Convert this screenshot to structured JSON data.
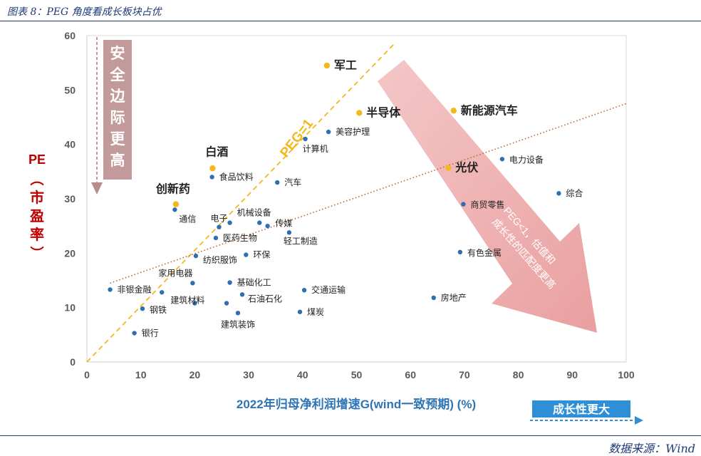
{
  "caption": "图表 8：PEG 角度看成长板块占优",
  "source": "数据来源：Wind",
  "chart_data": {
    "type": "scatter",
    "title": "",
    "xlabel": "2022年归母净利润增速G(wind一致预期) (%)",
    "ylabel_top": "PE",
    "ylabel_paren": "（市盈率）",
    "xlim": [
      0,
      100
    ],
    "ylim": [
      0,
      60
    ],
    "xticks": [
      "0",
      "10",
      "20",
      "30",
      "40",
      "50",
      "60",
      "70",
      "80",
      "90",
      "100"
    ],
    "yticks": [
      "0",
      "10",
      "20",
      "30",
      "40",
      "50",
      "60"
    ],
    "grid": false,
    "points": [
      {
        "name": "军工",
        "x": 44.5,
        "y": 54.5,
        "highlight": true
      },
      {
        "name": "半导体",
        "x": 50.5,
        "y": 45.8,
        "highlight": true
      },
      {
        "name": "新能源汽车",
        "x": 68.0,
        "y": 46.2,
        "highlight": true
      },
      {
        "name": "光伏",
        "x": 67.0,
        "y": 35.7,
        "highlight": true
      },
      {
        "name": "白酒",
        "x": 23.3,
        "y": 35.6,
        "highlight": true
      },
      {
        "name": "创新药",
        "x": 16.5,
        "y": 29.0,
        "highlight": true
      },
      {
        "name": "美容护理",
        "x": 44.8,
        "y": 42.3,
        "highlight": false
      },
      {
        "name": "计算机",
        "x": 40.5,
        "y": 41.0,
        "highlight": false
      },
      {
        "name": "食品饮料",
        "x": 23.2,
        "y": 34.0,
        "highlight": false
      },
      {
        "name": "汽车",
        "x": 35.3,
        "y": 33.0,
        "highlight": false
      },
      {
        "name": "通信",
        "x": 16.3,
        "y": 28.0,
        "highlight": false
      },
      {
        "name": "电子",
        "x": 24.5,
        "y": 24.8,
        "highlight": false
      },
      {
        "name": "机械设备",
        "x": 26.5,
        "y": 25.6,
        "highlight": false
      },
      {
        "name": "传媒",
        "x": 32.0,
        "y": 25.6,
        "highlight": false
      },
      {
        "name": "",
        "x": 33.5,
        "y": 25.0,
        "highlight": false
      },
      {
        "name": "医药生物",
        "x": 23.9,
        "y": 22.8,
        "highlight": false
      },
      {
        "name": "轻工制造",
        "x": 37.5,
        "y": 23.8,
        "highlight": false
      },
      {
        "name": "纺织服饰",
        "x": 20.2,
        "y": 19.5,
        "highlight": false
      },
      {
        "name": "环保",
        "x": 29.5,
        "y": 19.7,
        "highlight": false
      },
      {
        "name": "家用电器",
        "x": 19.6,
        "y": 14.5,
        "highlight": false
      },
      {
        "name": "基础化工",
        "x": 26.5,
        "y": 14.6,
        "highlight": false
      },
      {
        "name": "非银金融",
        "x": 4.3,
        "y": 13.3,
        "highlight": false
      },
      {
        "name": "",
        "x": 13.9,
        "y": 12.8,
        "highlight": false
      },
      {
        "name": "交通运输",
        "x": 40.3,
        "y": 13.2,
        "highlight": false
      },
      {
        "name": "石油石化",
        "x": 28.8,
        "y": 12.4,
        "highlight": false
      },
      {
        "name": "建筑材料",
        "x": 20.0,
        "y": 10.8,
        "highlight": false
      },
      {
        "name": "钢铁",
        "x": 10.3,
        "y": 9.8,
        "highlight": false
      },
      {
        "name": "",
        "x": 25.9,
        "y": 10.8,
        "highlight": false
      },
      {
        "name": "建筑装饰",
        "x": 28.0,
        "y": 9.0,
        "highlight": false
      },
      {
        "name": "煤炭",
        "x": 39.5,
        "y": 9.2,
        "highlight": false
      },
      {
        "name": "银行",
        "x": 8.8,
        "y": 5.3,
        "highlight": false
      },
      {
        "name": "电力设备",
        "x": 77.0,
        "y": 37.3,
        "highlight": false
      },
      {
        "name": "综合",
        "x": 87.5,
        "y": 31.0,
        "highlight": false
      },
      {
        "name": "商贸零售",
        "x": 69.8,
        "y": 29.0,
        "highlight": false
      },
      {
        "name": "有色金属",
        "x": 69.2,
        "y": 20.2,
        "highlight": false
      },
      {
        "name": "房地产",
        "x": 64.3,
        "y": 11.8,
        "highlight": false
      }
    ],
    "peg_line": {
      "label": "PEG=1",
      "from": [
        0,
        0
      ],
      "to": [
        57,
        58.5
      ]
    },
    "trend_line": {
      "from": [
        4.3,
        14.5
      ],
      "to": [
        100,
        47.5
      ]
    },
    "annotations": {
      "safety": "安全边际更高",
      "growth": "成长性更大",
      "arrow_text": "PEG<1，估值和成长性的匹配度更高"
    },
    "colors": {
      "highlight": "#f2b81c",
      "normal": "#2e6fb0",
      "peg": "#f2b81c",
      "trend": "#c0622a",
      "ylabel": "#c00000",
      "xlabel": "#2e75b6"
    }
  }
}
